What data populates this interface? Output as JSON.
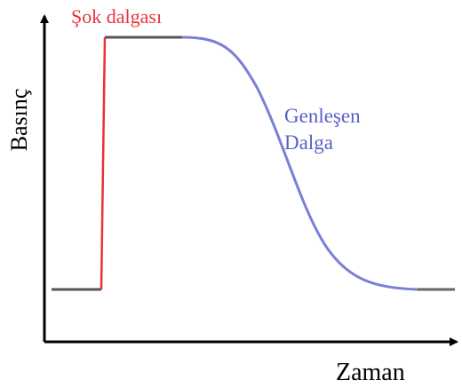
{
  "labels": {
    "shock_wave": "Şok dalgası",
    "expansion_wave": [
      "Genleşen",
      "Dalga"
    ],
    "y_axis": "Basınç",
    "x_axis": "Zaman"
  }
}
